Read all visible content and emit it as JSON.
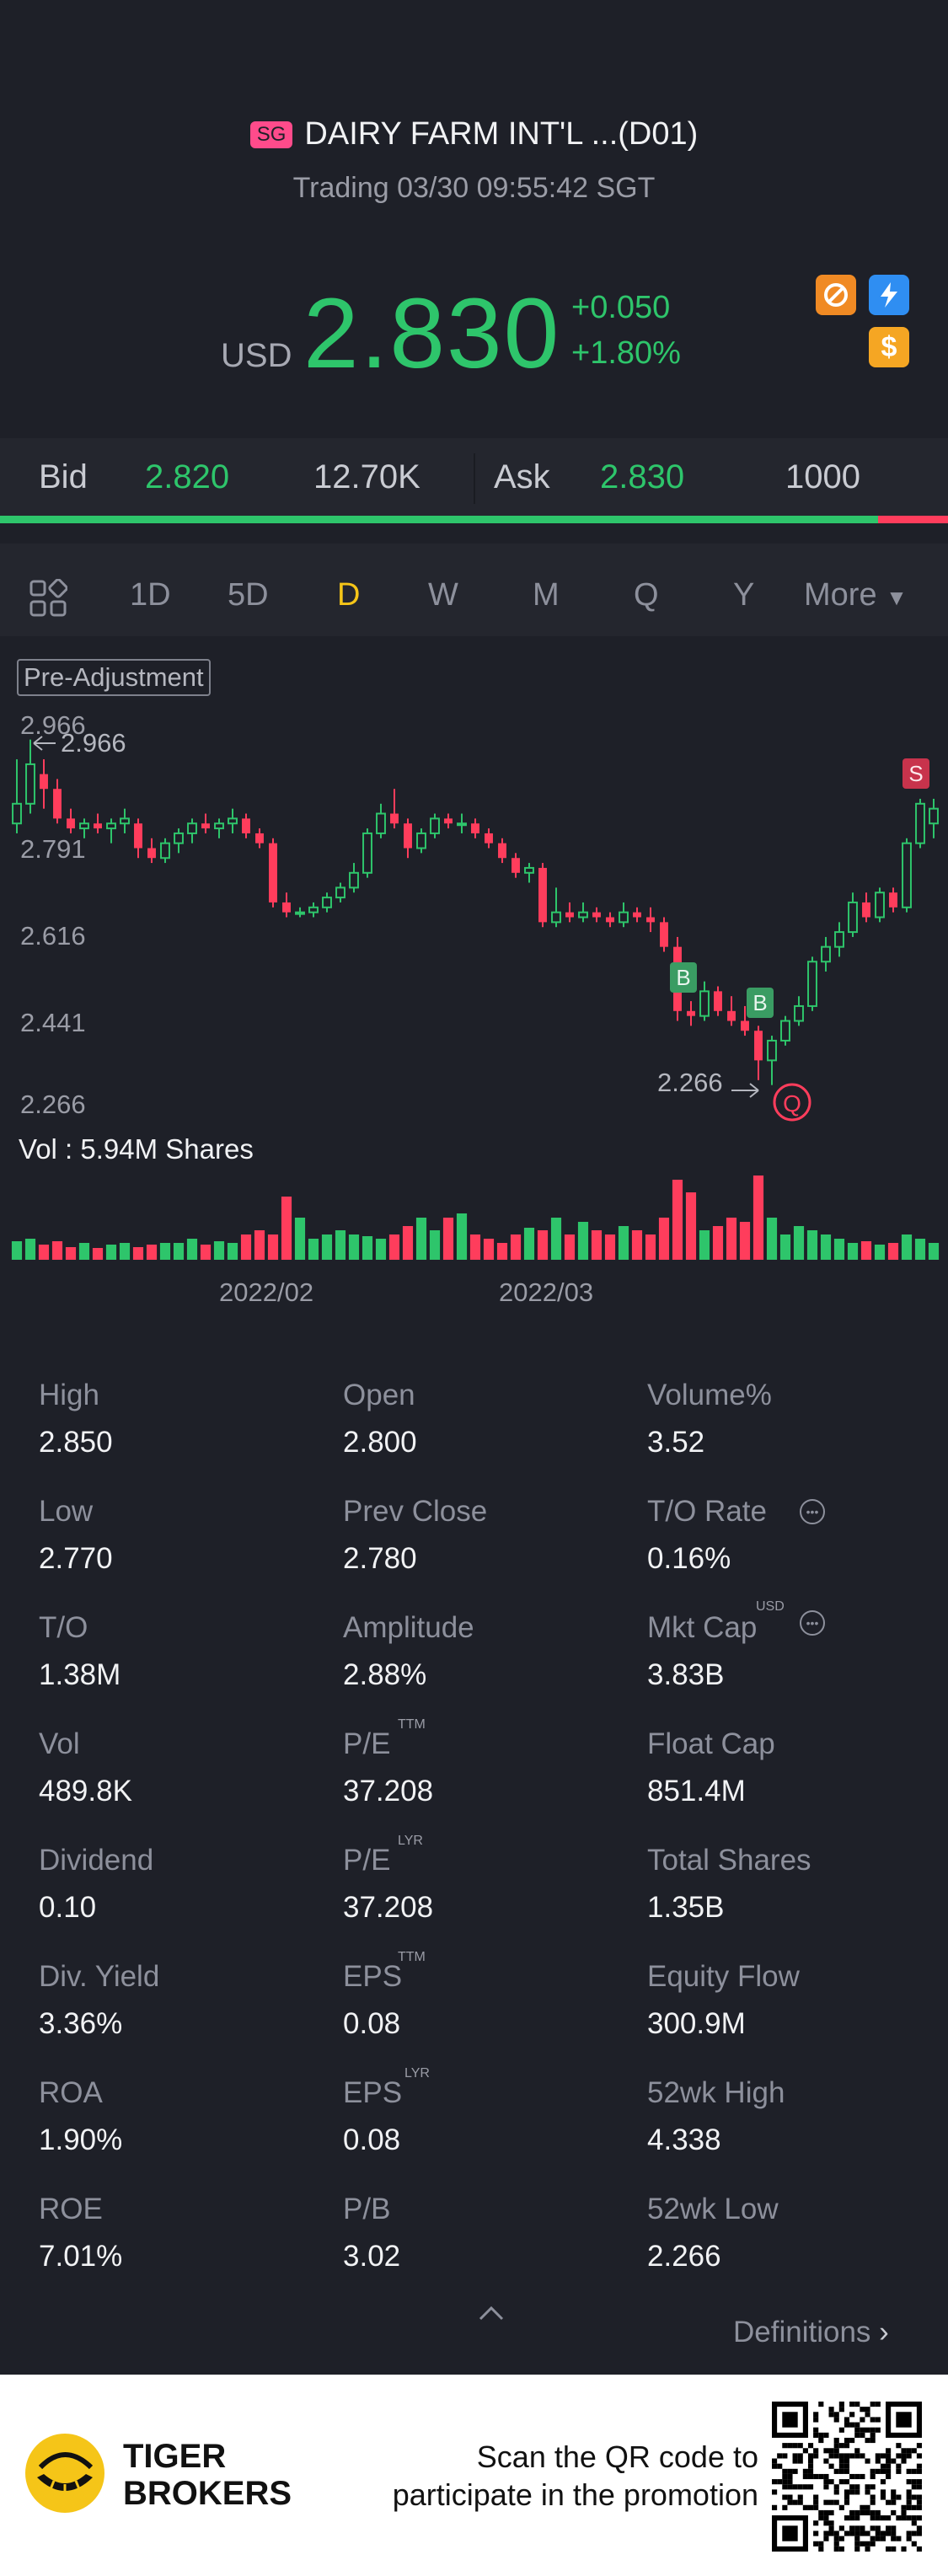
{
  "header": {
    "exchange_badge": "SG",
    "title": "DAIRY FARM INT'L ...(D01)",
    "status": "Trading 03/30 09:55:42 SGT"
  },
  "quote": {
    "currency": "USD",
    "price": "2.830",
    "change": "+0.050",
    "change_pct": "+1.80%"
  },
  "bid_ask": {
    "bid_label": "Bid",
    "bid_price": "2.820",
    "bid_size": "12.70K",
    "ask_label": "Ask",
    "ask_price": "2.830",
    "ask_size": "1000",
    "bid_fraction": 0.926
  },
  "tabs": {
    "items": [
      "1D",
      "5D",
      "D",
      "W",
      "M",
      "Q",
      "Y"
    ],
    "active": "D",
    "more": "More"
  },
  "chart": {
    "adjustment_label": "Pre-Adjustment",
    "y_ticks": [
      "2.966",
      "2.791",
      "2.616",
      "2.441",
      "2.266"
    ],
    "high_marker": "2.966",
    "low_marker": "2.266",
    "volume_label": "Vol  : 5.94M Shares",
    "x_ticks": [
      "2022/02",
      "2022/03"
    ],
    "trade_marks": [
      "B",
      "B",
      "S"
    ],
    "low_icon": "Q"
  },
  "chart_data": {
    "type": "candlestick",
    "ylim": [
      2.266,
      2.966
    ],
    "y_ticks": [
      2.966,
      2.791,
      2.616,
      2.441,
      2.266
    ],
    "x_tick_labels": [
      "2022/02",
      "2022/03"
    ],
    "candles": [
      {
        "o": 2.8,
        "h": 2.93,
        "l": 2.78,
        "c": 2.84
      },
      {
        "o": 2.84,
        "h": 2.97,
        "l": 2.82,
        "c": 2.92
      },
      {
        "o": 2.9,
        "h": 2.93,
        "l": 2.83,
        "c": 2.87
      },
      {
        "o": 2.87,
        "h": 2.89,
        "l": 2.8,
        "c": 2.81
      },
      {
        "o": 2.81,
        "h": 2.83,
        "l": 2.78,
        "c": 2.79
      },
      {
        "o": 2.79,
        "h": 2.81,
        "l": 2.77,
        "c": 2.8
      },
      {
        "o": 2.8,
        "h": 2.82,
        "l": 2.78,
        "c": 2.79
      },
      {
        "o": 2.79,
        "h": 2.81,
        "l": 2.76,
        "c": 2.8
      },
      {
        "o": 2.8,
        "h": 2.83,
        "l": 2.78,
        "c": 2.81
      },
      {
        "o": 2.8,
        "h": 2.81,
        "l": 2.73,
        "c": 2.75
      },
      {
        "o": 2.75,
        "h": 2.77,
        "l": 2.72,
        "c": 2.73
      },
      {
        "o": 2.73,
        "h": 2.77,
        "l": 2.72,
        "c": 2.76
      },
      {
        "o": 2.76,
        "h": 2.79,
        "l": 2.74,
        "c": 2.78
      },
      {
        "o": 2.78,
        "h": 2.81,
        "l": 2.76,
        "c": 2.8
      },
      {
        "o": 2.8,
        "h": 2.82,
        "l": 2.78,
        "c": 2.79
      },
      {
        "o": 2.79,
        "h": 2.81,
        "l": 2.77,
        "c": 2.8
      },
      {
        "o": 2.8,
        "h": 2.83,
        "l": 2.78,
        "c": 2.81
      },
      {
        "o": 2.81,
        "h": 2.82,
        "l": 2.77,
        "c": 2.78
      },
      {
        "o": 2.78,
        "h": 2.79,
        "l": 2.75,
        "c": 2.76
      },
      {
        "o": 2.76,
        "h": 2.77,
        "l": 2.63,
        "c": 2.64
      },
      {
        "o": 2.64,
        "h": 2.66,
        "l": 2.61,
        "c": 2.62
      },
      {
        "o": 2.62,
        "h": 2.63,
        "l": 2.61,
        "c": 2.62
      },
      {
        "o": 2.62,
        "h": 2.64,
        "l": 2.61,
        "c": 2.63
      },
      {
        "o": 2.63,
        "h": 2.66,
        "l": 2.62,
        "c": 2.65
      },
      {
        "o": 2.65,
        "h": 2.68,
        "l": 2.64,
        "c": 2.67
      },
      {
        "o": 2.67,
        "h": 2.72,
        "l": 2.66,
        "c": 2.7
      },
      {
        "o": 2.7,
        "h": 2.79,
        "l": 2.69,
        "c": 2.78
      },
      {
        "o": 2.78,
        "h": 2.84,
        "l": 2.77,
        "c": 2.82
      },
      {
        "o": 2.82,
        "h": 2.87,
        "l": 2.79,
        "c": 2.8
      },
      {
        "o": 2.8,
        "h": 2.81,
        "l": 2.73,
        "c": 2.75
      },
      {
        "o": 2.75,
        "h": 2.79,
        "l": 2.74,
        "c": 2.78
      },
      {
        "o": 2.78,
        "h": 2.82,
        "l": 2.77,
        "c": 2.81
      },
      {
        "o": 2.81,
        "h": 2.82,
        "l": 2.79,
        "c": 2.8
      },
      {
        "o": 2.8,
        "h": 2.82,
        "l": 2.78,
        "c": 2.8
      },
      {
        "o": 2.8,
        "h": 2.81,
        "l": 2.77,
        "c": 2.78
      },
      {
        "o": 2.78,
        "h": 2.79,
        "l": 2.75,
        "c": 2.76
      },
      {
        "o": 2.76,
        "h": 2.77,
        "l": 2.72,
        "c": 2.73
      },
      {
        "o": 2.73,
        "h": 2.74,
        "l": 2.69,
        "c": 2.7
      },
      {
        "o": 2.7,
        "h": 2.72,
        "l": 2.68,
        "c": 2.71
      },
      {
        "o": 2.71,
        "h": 2.72,
        "l": 2.59,
        "c": 2.6
      },
      {
        "o": 2.6,
        "h": 2.67,
        "l": 2.59,
        "c": 2.62
      },
      {
        "o": 2.62,
        "h": 2.64,
        "l": 2.6,
        "c": 2.61
      },
      {
        "o": 2.61,
        "h": 2.64,
        "l": 2.6,
        "c": 2.62
      },
      {
        "o": 2.62,
        "h": 2.63,
        "l": 2.6,
        "c": 2.61
      },
      {
        "o": 2.61,
        "h": 2.62,
        "l": 2.59,
        "c": 2.6
      },
      {
        "o": 2.6,
        "h": 2.64,
        "l": 2.59,
        "c": 2.62
      },
      {
        "o": 2.62,
        "h": 2.63,
        "l": 2.6,
        "c": 2.61
      },
      {
        "o": 2.61,
        "h": 2.63,
        "l": 2.58,
        "c": 2.6
      },
      {
        "o": 2.6,
        "h": 2.61,
        "l": 2.54,
        "c": 2.55
      },
      {
        "o": 2.55,
        "h": 2.57,
        "l": 2.4,
        "c": 2.42
      },
      {
        "o": 2.42,
        "h": 2.44,
        "l": 2.39,
        "c": 2.41
      },
      {
        "o": 2.41,
        "h": 2.48,
        "l": 2.4,
        "c": 2.46
      },
      {
        "o": 2.46,
        "h": 2.47,
        "l": 2.41,
        "c": 2.42
      },
      {
        "o": 2.42,
        "h": 2.45,
        "l": 2.39,
        "c": 2.4
      },
      {
        "o": 2.4,
        "h": 2.43,
        "l": 2.37,
        "c": 2.38
      },
      {
        "o": 2.38,
        "h": 2.39,
        "l": 2.28,
        "c": 2.32
      },
      {
        "o": 2.32,
        "h": 2.37,
        "l": 2.27,
        "c": 2.36
      },
      {
        "o": 2.36,
        "h": 2.41,
        "l": 2.35,
        "c": 2.4
      },
      {
        "o": 2.4,
        "h": 2.45,
        "l": 2.39,
        "c": 2.43
      },
      {
        "o": 2.43,
        "h": 2.53,
        "l": 2.42,
        "c": 2.52
      },
      {
        "o": 2.52,
        "h": 2.57,
        "l": 2.5,
        "c": 2.55
      },
      {
        "o": 2.55,
        "h": 2.6,
        "l": 2.53,
        "c": 2.58
      },
      {
        "o": 2.58,
        "h": 2.66,
        "l": 2.57,
        "c": 2.64
      },
      {
        "o": 2.64,
        "h": 2.66,
        "l": 2.6,
        "c": 2.61
      },
      {
        "o": 2.61,
        "h": 2.67,
        "l": 2.6,
        "c": 2.66
      },
      {
        "o": 2.66,
        "h": 2.67,
        "l": 2.62,
        "c": 2.63
      },
      {
        "o": 2.63,
        "h": 2.77,
        "l": 2.62,
        "c": 2.76
      },
      {
        "o": 2.76,
        "h": 2.85,
        "l": 2.75,
        "c": 2.84
      },
      {
        "o": 2.8,
        "h": 2.85,
        "l": 2.77,
        "c": 2.83
      }
    ],
    "volume_units": "relative",
    "volumes": [
      0.22,
      0.25,
      0.18,
      0.22,
      0.15,
      0.2,
      0.14,
      0.18,
      0.2,
      0.15,
      0.18,
      0.2,
      0.2,
      0.25,
      0.18,
      0.22,
      0.2,
      0.3,
      0.35,
      0.3,
      0.75,
      0.5,
      0.25,
      0.3,
      0.35,
      0.3,
      0.28,
      0.25,
      0.3,
      0.4,
      0.5,
      0.35,
      0.5,
      0.55,
      0.3,
      0.25,
      0.2,
      0.3,
      0.38,
      0.35,
      0.5,
      0.3,
      0.45,
      0.35,
      0.3,
      0.4,
      0.35,
      0.3,
      0.5,
      0.95,
      0.8,
      0.35,
      0.4,
      0.5,
      0.45,
      1.0,
      0.5,
      0.3,
      0.4,
      0.35,
      0.3,
      0.25,
      0.2,
      0.22,
      0.18,
      0.2,
      0.3,
      0.25,
      0.2
    ]
  },
  "stats": [
    [
      {
        "label": "High",
        "value": "2.850"
      },
      {
        "label": "Open",
        "value": "2.800"
      },
      {
        "label": "Volume%",
        "value": "3.52"
      }
    ],
    [
      {
        "label": "Low",
        "value": "2.770"
      },
      {
        "label": "Prev Close",
        "value": "2.780"
      },
      {
        "label": "T/O Rate",
        "value": "0.16%"
      }
    ],
    [
      {
        "label": "T/O",
        "value": "1.38M"
      },
      {
        "label": "Amplitude",
        "value": "2.88%"
      },
      {
        "label": "Mkt Cap",
        "value": "3.83B"
      }
    ],
    [
      {
        "label": "Vol",
        "value": "489.8K"
      },
      {
        "label": "P/E",
        "value": "37.208"
      },
      {
        "label": "Float Cap",
        "value": "851.4M"
      }
    ],
    [
      {
        "label": "Dividend",
        "value": "0.10"
      },
      {
        "label": "P/E",
        "value": "37.208"
      },
      {
        "label": "Total Shares",
        "value": "1.35B"
      }
    ],
    [
      {
        "label": "Div. Yield",
        "value": "3.36%"
      },
      {
        "label": "EPS",
        "value": "0.08"
      },
      {
        "label": "Equity Flow",
        "value": "300.9M"
      }
    ],
    [
      {
        "label": "ROA",
        "value": "1.90%"
      },
      {
        "label": "EPS",
        "value": "0.08"
      },
      {
        "label": "52wk High",
        "value": "4.338"
      }
    ],
    [
      {
        "label": "ROE",
        "value": "7.01%"
      },
      {
        "label": "P/B",
        "value": "3.02"
      },
      {
        "label": "52wk Low",
        "value": "2.266"
      }
    ]
  ],
  "stat_superscripts": {
    "mkt_cap": "USD",
    "pe_ttm": "TTM",
    "pe_lyr": "LYR",
    "eps_ttm": "TTM",
    "eps_lyr": "LYR"
  },
  "definitions": "Definitions",
  "footer": {
    "brand_line1": "TIGER",
    "brand_line2": "BROKERS",
    "promo_line1": "Scan the QR code to",
    "promo_line2": "participate in the promotion"
  },
  "colors": {
    "up": "#2ec56b",
    "down": "#ff3d5c",
    "accent": "#f5c518",
    "background": "#1e2028"
  }
}
